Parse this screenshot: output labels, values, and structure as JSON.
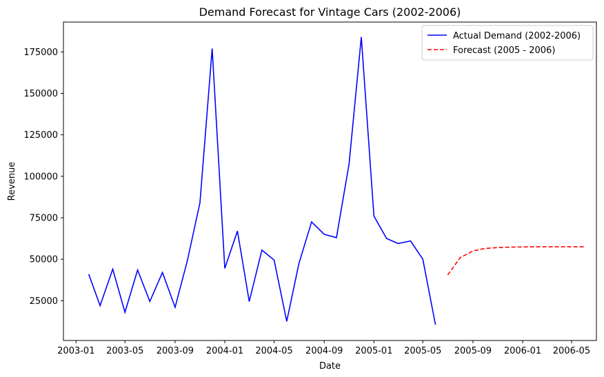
{
  "chart_data": {
    "type": "line",
    "title": "Demand Forecast for Vintage Cars (2002-2006)",
    "xlabel": "Date",
    "ylabel": "Revenue",
    "xlim": [
      "2002-12-01",
      "2006-07-01"
    ],
    "ylim": [
      1000,
      193000
    ],
    "x_ticks": [
      "2003-01",
      "2003-05",
      "2003-09",
      "2004-01",
      "2004-05",
      "2004-09",
      "2005-01",
      "2005-05",
      "2005-09",
      "2006-01",
      "2006-05"
    ],
    "y_ticks": [
      25000,
      50000,
      75000,
      100000,
      125000,
      150000,
      175000
    ],
    "grid": false,
    "legend_position": "top-right",
    "series": [
      {
        "name": "Actual Demand (2002-2006)",
        "color": "#0000ff",
        "style": "solid",
        "x": [
          "2003-02-01",
          "2003-03-01",
          "2003-04-01",
          "2003-05-01",
          "2003-06-01",
          "2003-07-01",
          "2003-08-01",
          "2003-09-01",
          "2003-10-01",
          "2003-11-01",
          "2003-12-01",
          "2004-01-01",
          "2004-02-01",
          "2004-03-01",
          "2004-04-01",
          "2004-05-01",
          "2004-06-01",
          "2004-07-01",
          "2004-08-01",
          "2004-09-01",
          "2004-10-01",
          "2004-11-01",
          "2004-12-01",
          "2005-01-01",
          "2005-02-01",
          "2005-03-01",
          "2005-04-01",
          "2005-05-01",
          "2005-06-01"
        ],
        "y": [
          41000,
          22000,
          44000,
          18000,
          43500,
          24500,
          42000,
          21000,
          49000,
          84000,
          177000,
          44500,
          67000,
          24500,
          55500,
          49500,
          12500,
          47500,
          72500,
          65000,
          63000,
          107500,
          184000,
          76000,
          62500,
          59500,
          61000,
          50000,
          10500
        ]
      },
      {
        "name": "Forecast (2005 - 2006)",
        "color": "#ff0000",
        "style": "dashed",
        "x": [
          "2005-07-01",
          "2005-08-01",
          "2005-09-01",
          "2005-10-01",
          "2005-11-01",
          "2005-12-01",
          "2006-01-01",
          "2006-02-01",
          "2006-03-01",
          "2006-04-01",
          "2006-05-01",
          "2006-06-01"
        ],
        "y": [
          40500,
          51000,
          55000,
          56500,
          57000,
          57300,
          57400,
          57500,
          57500,
          57500,
          57500,
          57500
        ]
      }
    ]
  }
}
